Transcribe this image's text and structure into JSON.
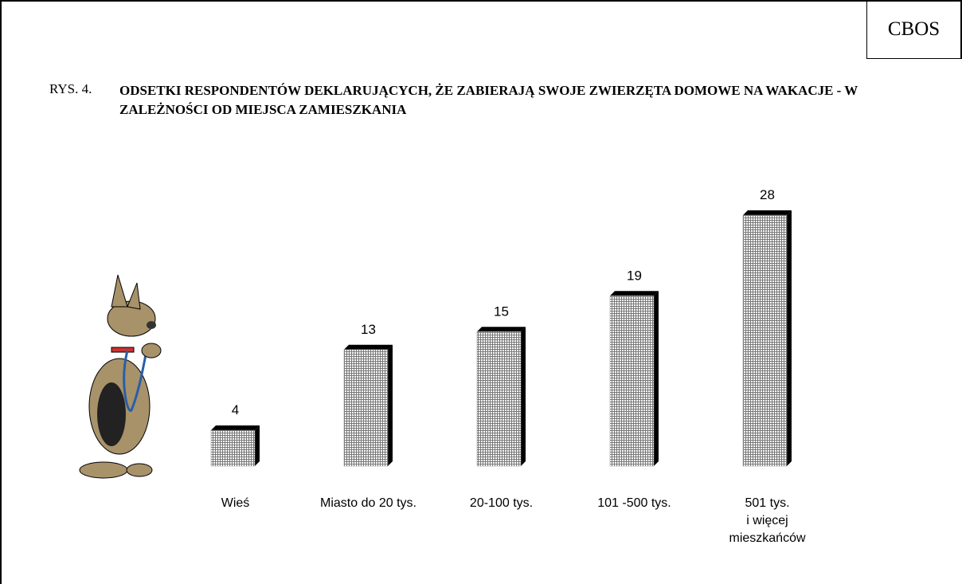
{
  "chart_data": {
    "type": "bar",
    "badge": "CBOS",
    "figure_label": "RYS. 4.",
    "title": "ODSETKI RESPONDENTÓW DEKLARUJĄCYCH, ŻE ZABIERAJĄ SWOJE ZWIERZĘTA DOMOWE NA WAKACJE - W ZALEŻNOŚCI OD MIEJSCA ZAMIESZKANIA",
    "categories": [
      "Wieś",
      "Miasto do 20 tys.",
      "20-100 tys.",
      "101 -500 tys.",
      "501 tys.\ni więcej\nmieszkańców"
    ],
    "values": [
      4,
      13,
      15,
      19,
      28
    ],
    "color": "#8c8c8c"
  }
}
